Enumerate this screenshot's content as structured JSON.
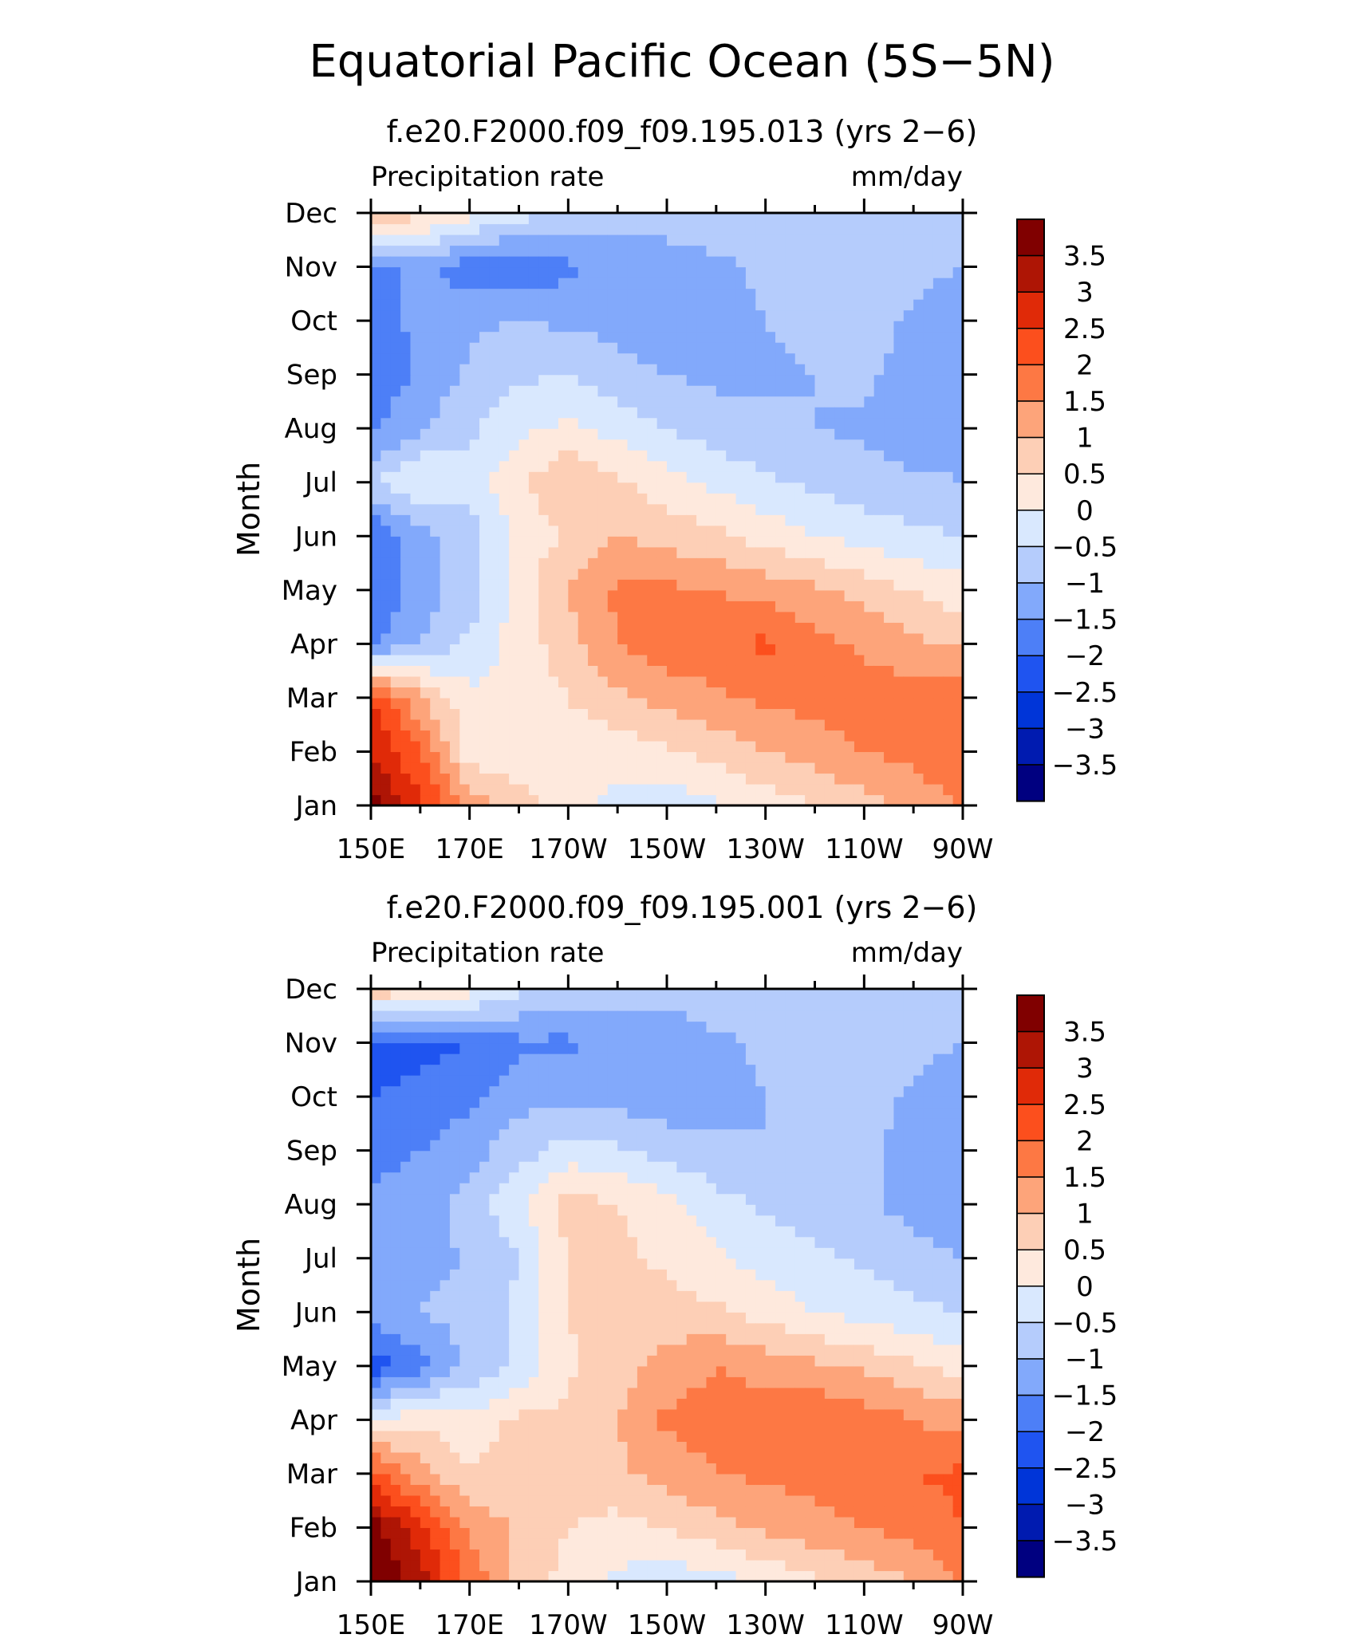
{
  "figure": {
    "title": "Equatorial Pacific Ocean (5S−5N)"
  },
  "chart_data": [
    {
      "type": "heatmap",
      "title": "f.e20.F2000.f09_f09.195.013 (yrs 2−6)",
      "left_label": "Precipitation rate",
      "units": "mm/day",
      "ylabel": "Month",
      "x_tick_labels": [
        "150E",
        "170E",
        "170W",
        "150W",
        "130W",
        "110W",
        "90W"
      ],
      "x_lon": [
        150,
        160,
        170,
        180,
        190,
        200,
        210,
        220,
        230,
        240,
        250,
        260,
        270
      ],
      "months": [
        "Jan",
        "Feb",
        "Mar",
        "Apr",
        "May",
        "Jun",
        "Jul",
        "Aug",
        "Sep",
        "Oct",
        "Nov",
        "Dec"
      ],
      "values": [
        [
          3.8,
          2.6,
          1.4,
          0.7,
          0.2,
          -0.2,
          -0.3,
          -0.1,
          0.2,
          0.5,
          0.8,
          1.1,
          1.5
        ],
        [
          3.0,
          2.0,
          0.2,
          0.2,
          0.2,
          0.2,
          0.4,
          0.7,
          1.0,
          1.2,
          1.5,
          1.7,
          2.0
        ],
        [
          2.5,
          1.1,
          0.1,
          0.2,
          0.5,
          0.9,
          1.2,
          1.4,
          1.6,
          1.7,
          1.8,
          1.8,
          1.9
        ],
        [
          -1.6,
          -1.0,
          -0.4,
          0.2,
          0.8,
          1.5,
          1.8,
          1.9,
          2.1,
          1.7,
          1.4,
          1.1,
          0.9
        ],
        [
          -2.0,
          -1.2,
          -0.8,
          0.3,
          1.0,
          1.6,
          1.6,
          1.5,
          1.3,
          1.1,
          0.8,
          0.5,
          0.2
        ],
        [
          -2.0,
          -1.2,
          -0.7,
          0.1,
          0.6,
          1.0,
          0.8,
          0.6,
          0.3,
          0.0,
          -0.2,
          -0.4,
          -0.5
        ],
        [
          -0.6,
          0.1,
          -0.3,
          0.4,
          1.0,
          0.6,
          0.2,
          -0.1,
          -0.4,
          -0.6,
          -0.8,
          -0.9,
          -1.0
        ],
        [
          -1.6,
          -1.1,
          -0.6,
          -0.1,
          0.1,
          -0.2,
          -0.5,
          -0.8,
          -0.9,
          -1.0,
          -1.1,
          -1.3,
          -1.2
        ],
        [
          -1.9,
          -1.4,
          -0.9,
          -0.6,
          -0.5,
          -0.8,
          -1.0,
          -1.1,
          -1.1,
          -1.0,
          -0.9,
          -1.2,
          -1.3
        ],
        [
          -1.7,
          -1.4,
          -1.1,
          -1.0,
          -1.1,
          -1.2,
          -1.3,
          -1.2,
          -1.0,
          -0.9,
          -0.8,
          -1.1,
          -1.4
        ],
        [
          -1.8,
          -1.2,
          -1.9,
          -1.9,
          -1.6,
          -1.4,
          -1.3,
          -1.1,
          -0.9,
          -0.8,
          -0.7,
          -0.8,
          -1.0
        ],
        [
          1.0,
          0.6,
          0.2,
          -0.3,
          -0.6,
          -0.7,
          -0.7,
          -0.7,
          -0.6,
          -0.6,
          -0.5,
          -0.6,
          -0.5
        ]
      ],
      "levels": [
        -3.5,
        -3,
        -2.5,
        -2,
        -1.5,
        -1,
        -0.5,
        0,
        0.5,
        1,
        1.5,
        2,
        2.5,
        3,
        3.5
      ],
      "colors": [
        "#000080",
        "#001bb0",
        "#0035d8",
        "#1f54f0",
        "#4d7ff7",
        "#82a9fb",
        "#b5ccfc",
        "#d9e8fe",
        "#fee9dd",
        "#fdcfb6",
        "#fda47a",
        "#fd7844",
        "#fc4f1d",
        "#e02a08",
        "#ae1505",
        "#800000"
      ],
      "legend_labels": [
        "3.5",
        "3",
        "2.5",
        "2",
        "1.5",
        "1",
        "0.5",
        "0",
        "−0.5",
        "−1",
        "−1.5",
        "−2",
        "−2.5",
        "−3",
        "−3.5"
      ]
    },
    {
      "type": "heatmap",
      "title": "f.e20.F2000.f09_f09.195.001 (yrs 2−6)",
      "left_label": "Precipitation rate",
      "units": "mm/day",
      "ylabel": "Month",
      "x_tick_labels": [
        "150E",
        "170E",
        "170W",
        "150W",
        "130W",
        "110W",
        "90W"
      ],
      "x_lon": [
        150,
        160,
        170,
        180,
        190,
        200,
        210,
        220,
        230,
        240,
        250,
        260,
        270
      ],
      "months": [
        "Jan",
        "Feb",
        "Mar",
        "Apr",
        "May",
        "Jun",
        "Jul",
        "Aug",
        "Sep",
        "Oct",
        "Nov",
        "Dec"
      ],
      "values": [
        [
          4.0,
          3.3,
          1.8,
          0.9,
          0.3,
          -0.1,
          -0.3,
          -0.2,
          0.1,
          0.4,
          0.7,
          1.0,
          1.6
        ],
        [
          3.8,
          2.6,
          1.4,
          0.9,
          0.5,
          0.3,
          0.5,
          0.8,
          1.1,
          1.3,
          1.5,
          1.7,
          2.0
        ],
        [
          2.3,
          1.2,
          0.5,
          0.8,
          0.8,
          0.9,
          1.2,
          1.5,
          1.6,
          1.7,
          1.8,
          2.0,
          2.1
        ],
        [
          0.0,
          0.4,
          0.2,
          0.6,
          0.6,
          1.0,
          1.6,
          1.7,
          1.8,
          2.0,
          1.8,
          1.5,
          1.3
        ],
        [
          -2.4,
          -1.7,
          -0.9,
          -0.4,
          0.4,
          0.8,
          1.2,
          1.5,
          1.3,
          1.1,
          0.9,
          0.6,
          0.3
        ],
        [
          -1.2,
          -1.0,
          -0.8,
          -0.4,
          0.5,
          0.9,
          0.7,
          0.6,
          0.3,
          0.0,
          -0.2,
          -0.4,
          -0.5
        ],
        [
          -1.2,
          -1.1,
          -1.0,
          -0.5,
          0.5,
          0.6,
          0.4,
          0.1,
          -0.2,
          -0.4,
          -0.6,
          -0.8,
          -1.0
        ],
        [
          -1.4,
          -1.2,
          -0.8,
          -0.1,
          0.8,
          0.5,
          0.2,
          -0.3,
          -0.6,
          -0.8,
          -0.9,
          -1.2,
          -1.4
        ],
        [
          -1.7,
          -1.5,
          -1.2,
          -0.7,
          -0.3,
          -0.4,
          -0.7,
          -0.9,
          -1.0,
          -1.0,
          -0.9,
          -1.2,
          -1.4
        ],
        [
          -2.0,
          -1.8,
          -1.6,
          -1.2,
          -1.1,
          -1.2,
          -1.3,
          -1.2,
          -1.0,
          -0.9,
          -0.8,
          -1.1,
          -1.4
        ],
        [
          -2.3,
          -2.2,
          -2.0,
          -1.6,
          -1.6,
          -1.4,
          -1.3,
          -1.1,
          -0.9,
          -0.8,
          -0.7,
          -0.8,
          -1.0
        ],
        [
          1.0,
          0.6,
          0.2,
          -0.4,
          -0.7,
          -0.8,
          -0.8,
          -0.7,
          -0.6,
          -0.6,
          -0.5,
          -0.6,
          -0.5
        ]
      ],
      "levels": [
        -3.5,
        -3,
        -2.5,
        -2,
        -1.5,
        -1,
        -0.5,
        0,
        0.5,
        1,
        1.5,
        2,
        2.5,
        3,
        3.5
      ],
      "colors": [
        "#000080",
        "#001bb0",
        "#0035d8",
        "#1f54f0",
        "#4d7ff7",
        "#82a9fb",
        "#b5ccfc",
        "#d9e8fe",
        "#fee9dd",
        "#fdcfb6",
        "#fda47a",
        "#fd7844",
        "#fc4f1d",
        "#e02a08",
        "#ae1505",
        "#800000"
      ],
      "legend_labels": [
        "3.5",
        "3",
        "2.5",
        "2",
        "1.5",
        "1",
        "0.5",
        "0",
        "−0.5",
        "−1",
        "−1.5",
        "−2",
        "−2.5",
        "−3",
        "−3.5"
      ]
    }
  ]
}
